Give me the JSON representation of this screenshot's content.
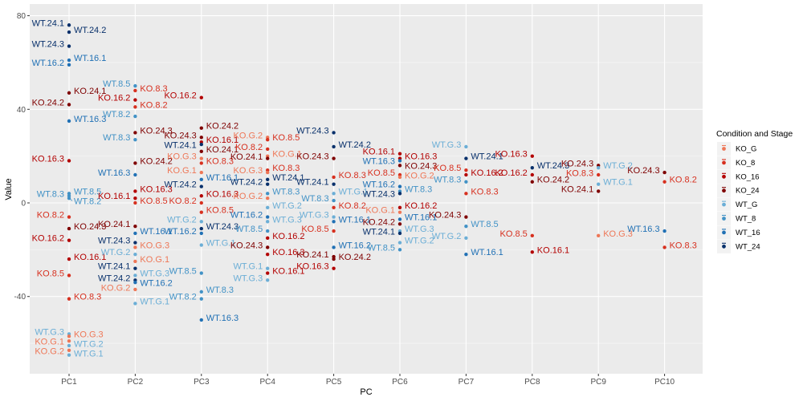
{
  "chart_data": {
    "type": "scatter",
    "xlabel": "PC",
    "ylabel": "Value",
    "categories": [
      "PC1",
      "PC2",
      "PC3",
      "PC4",
      "PC5",
      "PC6",
      "PC7",
      "PC8",
      "PC9",
      "PC10"
    ],
    "ylim": [
      -73,
      85
    ],
    "yticks": [
      -40,
      0,
      40,
      80
    ],
    "grid": true,
    "legend_title": "Condition and Stage",
    "legend_position": "right",
    "groups": [
      {
        "name": "KO_G",
        "color": "#EE7757"
      },
      {
        "name": "KO_8",
        "color": "#D7301F"
      },
      {
        "name": "KO_16",
        "color": "#B30000"
      },
      {
        "name": "KO_24",
        "color": "#7F0000"
      },
      {
        "name": "WT_G",
        "color": "#6BAED6"
      },
      {
        "name": "WT_8",
        "color": "#4292C6"
      },
      {
        "name": "WT_16",
        "color": "#2171B5"
      },
      {
        "name": "WT_24",
        "color": "#08306B"
      }
    ],
    "points": [
      {
        "label": "WT.24.1",
        "group": "WT_24",
        "pc": 1,
        "value": 76
      },
      {
        "label": "WT.24.2",
        "group": "WT_24",
        "pc": 1,
        "value": 73
      },
      {
        "label": "WT.24.3",
        "group": "WT_24",
        "pc": 1,
        "value": 67
      },
      {
        "label": "WT.16.1",
        "group": "WT_16",
        "pc": 1,
        "value": 61
      },
      {
        "label": "WT.16.2",
        "group": "WT_16",
        "pc": 1,
        "value": 59
      },
      {
        "label": "KO.24.1",
        "group": "KO_24",
        "pc": 1,
        "value": 47
      },
      {
        "label": "KO.24.2",
        "group": "KO_24",
        "pc": 1,
        "value": 42
      },
      {
        "label": "WT.16.3",
        "group": "WT_16",
        "pc": 1,
        "value": 35
      },
      {
        "label": "KO.16.3",
        "group": "KO_16",
        "pc": 1,
        "value": 18
      },
      {
        "label": "WT.8.5",
        "group": "WT_8",
        "pc": 1,
        "value": 4
      },
      {
        "label": "WT.8.3",
        "group": "WT_8",
        "pc": 1,
        "value": 3
      },
      {
        "label": "WT.8.2",
        "group": "WT_8",
        "pc": 1,
        "value": 2
      },
      {
        "label": "KO.8.2",
        "group": "KO_8",
        "pc": 1,
        "value": -6
      },
      {
        "label": "KO.24.3",
        "group": "KO_24",
        "pc": 1,
        "value": -11
      },
      {
        "label": "KO.16.2",
        "group": "KO_16",
        "pc": 1,
        "value": -16
      },
      {
        "label": "KO.16.1",
        "group": "KO_16",
        "pc": 1,
        "value": -24
      },
      {
        "label": "KO.8.5",
        "group": "KO_8",
        "pc": 1,
        "value": -31
      },
      {
        "label": "KO.8.3",
        "group": "KO_8",
        "pc": 1,
        "value": -41
      },
      {
        "label": "WT.G.3",
        "group": "WT_G",
        "pc": 1,
        "value": -56
      },
      {
        "label": "KO.G.3",
        "group": "KO_G",
        "pc": 1,
        "value": -57
      },
      {
        "label": "KO.G.1",
        "group": "KO_G",
        "pc": 1,
        "value": -59
      },
      {
        "label": "WT.G.2",
        "group": "WT_G",
        "pc": 1,
        "value": -61
      },
      {
        "label": "KO.G.2",
        "group": "KO_G",
        "pc": 1,
        "value": -63
      },
      {
        "label": "WT.G.1",
        "group": "WT_G",
        "pc": 1,
        "value": -65
      },
      {
        "label": "WT.8.5",
        "group": "WT_8",
        "pc": 2,
        "value": 50
      },
      {
        "label": "KO.8.3",
        "group": "KO_8",
        "pc": 2,
        "value": 48
      },
      {
        "label": "KO.16.2",
        "group": "KO_16",
        "pc": 2,
        "value": 44
      },
      {
        "label": "KO.8.2",
        "group": "KO_8",
        "pc": 2,
        "value": 41
      },
      {
        "label": "WT.8.2",
        "group": "WT_8",
        "pc": 2,
        "value": 37
      },
      {
        "label": "KO.24.3",
        "group": "KO_24",
        "pc": 2,
        "value": 30
      },
      {
        "label": "WT.8.3",
        "group": "WT_8",
        "pc": 2,
        "value": 27
      },
      {
        "label": "KO.24.2",
        "group": "KO_24",
        "pc": 2,
        "value": 17
      },
      {
        "label": "WT.16.3",
        "group": "WT_16",
        "pc": 2,
        "value": 12
      },
      {
        "label": "KO.16.3",
        "group": "KO_16",
        "pc": 2,
        "value": 5
      },
      {
        "label": "KO.16.1",
        "group": "KO_16",
        "pc": 2,
        "value": 2
      },
      {
        "label": "KO.8.5",
        "group": "KO_8",
        "pc": 2,
        "value": 0
      },
      {
        "label": "KO.24.1",
        "group": "KO_24",
        "pc": 2,
        "value": -10
      },
      {
        "label": "WT.16.1",
        "group": "WT_16",
        "pc": 2,
        "value": -13
      },
      {
        "label": "WT.24.3",
        "group": "WT_24",
        "pc": 2,
        "value": -17
      },
      {
        "label": "KO.G.3",
        "group": "KO_G",
        "pc": 2,
        "value": -19
      },
      {
        "label": "WT.G.2",
        "group": "WT_G",
        "pc": 2,
        "value": -22
      },
      {
        "label": "KO.G.1",
        "group": "KO_G",
        "pc": 2,
        "value": -25
      },
      {
        "label": "WT.24.1",
        "group": "WT_24",
        "pc": 2,
        "value": -28
      },
      {
        "label": "WT.G.3",
        "group": "WT_G",
        "pc": 2,
        "value": -31
      },
      {
        "label": "WT.24.2",
        "group": "WT_24",
        "pc": 2,
        "value": -33
      },
      {
        "label": "WT.16.2",
        "group": "WT_16",
        "pc": 2,
        "value": -34
      },
      {
        "label": "KO.G.2",
        "group": "KO_G",
        "pc": 2,
        "value": -37
      },
      {
        "label": "WT.G.1",
        "group": "WT_G",
        "pc": 2,
        "value": -43
      },
      {
        "label": "KO.16.2",
        "group": "KO_16",
        "pc": 3,
        "value": 45
      },
      {
        "label": "KO.24.2",
        "group": "KO_24",
        "pc": 3,
        "value": 32
      },
      {
        "label": "KO.24.3",
        "group": "KO_24",
        "pc": 3,
        "value": 28
      },
      {
        "label": "KO.16.1",
        "group": "KO_16",
        "pc": 3,
        "value": 26
      },
      {
        "label": "WT.24.1",
        "group": "WT_24",
        "pc": 3,
        "value": 25
      },
      {
        "label": "KO.24.1",
        "group": "KO_24",
        "pc": 3,
        "value": 22
      },
      {
        "label": "KO.G.3",
        "group": "KO_G",
        "pc": 3,
        "value": 19
      },
      {
        "label": "KO.8.3",
        "group": "KO_8",
        "pc": 3,
        "value": 17
      },
      {
        "label": "KO.G.1",
        "group": "KO_G",
        "pc": 3,
        "value": 13
      },
      {
        "label": "WT.16.1",
        "group": "WT_16",
        "pc": 3,
        "value": 10
      },
      {
        "label": "WT.24.2",
        "group": "WT_24",
        "pc": 3,
        "value": 7
      },
      {
        "label": "KO.16.3",
        "group": "KO_16",
        "pc": 3,
        "value": 3
      },
      {
        "label": "KO.8.2",
        "group": "KO_8",
        "pc": 3,
        "value": 0
      },
      {
        "label": "KO.8.5",
        "group": "KO_8",
        "pc": 3,
        "value": -4
      },
      {
        "label": "WT.G.2",
        "group": "WT_G",
        "pc": 3,
        "value": -8
      },
      {
        "label": "WT.24.3",
        "group": "WT_24",
        "pc": 3,
        "value": -11
      },
      {
        "label": "WT.16.2",
        "group": "WT_16",
        "pc": 3,
        "value": -13
      },
      {
        "label": "WT.G.1",
        "group": "WT_G",
        "pc": 3,
        "value": -18
      },
      {
        "label": "WT.8.5",
        "group": "WT_8",
        "pc": 3,
        "value": -30
      },
      {
        "label": "WT.8.3",
        "group": "WT_8",
        "pc": 3,
        "value": -38
      },
      {
        "label": "WT.8.2",
        "group": "WT_8",
        "pc": 3,
        "value": -41
      },
      {
        "label": "WT.16.3",
        "group": "WT_16",
        "pc": 3,
        "value": -50
      },
      {
        "label": "KO.G.2",
        "group": "KO_G",
        "pc": 4,
        "value": 28
      },
      {
        "label": "KO.8.5",
        "group": "KO_8",
        "pc": 4,
        "value": 27
      },
      {
        "label": "KO.8.2",
        "group": "KO_8",
        "pc": 4,
        "value": 23
      },
      {
        "label": "KO.G.1",
        "group": "KO_G",
        "pc": 4,
        "value": 20
      },
      {
        "label": "KO.24.1",
        "group": "KO_24",
        "pc": 4,
        "value": 19
      },
      {
        "label": "KO.8.3",
        "group": "KO_8",
        "pc": 4,
        "value": 14
      },
      {
        "label": "KO.G.3",
        "group": "KO_G",
        "pc": 4,
        "value": 13
      },
      {
        "label": "WT.24.1",
        "group": "WT_24",
        "pc": 4,
        "value": 10
      },
      {
        "label": "WT.24.2",
        "group": "WT_24",
        "pc": 4,
        "value": 8
      },
      {
        "label": "WT.8.3",
        "group": "WT_8",
        "pc": 4,
        "value": 4
      },
      {
        "label": "KO.G.2",
        "group": "KO_G",
        "pc": 4,
        "value": 2
      },
      {
        "label": "WT.G.2",
        "group": "WT_G",
        "pc": 4,
        "value": -2
      },
      {
        "label": "WT.16.2",
        "group": "WT_16",
        "pc": 4,
        "value": -6
      },
      {
        "label": "WT.G.3",
        "group": "WT_G",
        "pc": 4,
        "value": -8
      },
      {
        "label": "WT.8.5",
        "group": "WT_8",
        "pc": 4,
        "value": -12
      },
      {
        "label": "KO.16.2",
        "group": "KO_16",
        "pc": 4,
        "value": -15
      },
      {
        "label": "KO.24.3",
        "group": "KO_24",
        "pc": 4,
        "value": -19
      },
      {
        "label": "KO.16.3",
        "group": "KO_16",
        "pc": 4,
        "value": -22
      },
      {
        "label": "WT.G.1",
        "group": "WT_G",
        "pc": 4,
        "value": -28
      },
      {
        "label": "WT.G.3",
        "group": "WT_G",
        "pc": 4,
        "value": -33
      },
      {
        "label": "KO.16.1",
        "group": "KO_16",
        "pc": 4,
        "value": -30
      },
      {
        "label": "WT.24.3",
        "group": "WT_24",
        "pc": 5,
        "value": 30
      },
      {
        "label": "WT.24.2",
        "group": "WT_24",
        "pc": 5,
        "value": 24
      },
      {
        "label": "KO.24.3",
        "group": "KO_24",
        "pc": 5,
        "value": 19
      },
      {
        "label": "KO.8.3",
        "group": "KO_8",
        "pc": 5,
        "value": 11
      },
      {
        "label": "WT.24.1",
        "group": "WT_24",
        "pc": 5,
        "value": 8
      },
      {
        "label": "WT.G.1",
        "group": "WT_G",
        "pc": 5,
        "value": 4
      },
      {
        "label": "WT.8.3",
        "group": "WT_8",
        "pc": 5,
        "value": 1
      },
      {
        "label": "KO.8.2",
        "group": "KO_8",
        "pc": 5,
        "value": -2
      },
      {
        "label": "WT.G.3",
        "group": "WT_G",
        "pc": 5,
        "value": -6
      },
      {
        "label": "WT.16.1",
        "group": "WT_16",
        "pc": 5,
        "value": -8
      },
      {
        "label": "KO.8.5",
        "group": "KO_8",
        "pc": 5,
        "value": -12
      },
      {
        "label": "WT.16.2",
        "group": "WT_16",
        "pc": 5,
        "value": -19
      },
      {
        "label": "KO.24.1",
        "group": "KO_24",
        "pc": 5,
        "value": -23
      },
      {
        "label": "KO.24.2",
        "group": "KO_24",
        "pc": 5,
        "value": -24
      },
      {
        "label": "KO.16.3",
        "group": "KO_16",
        "pc": 5,
        "value": -28
      },
      {
        "label": "KO.16.1",
        "group": "KO_16",
        "pc": 6,
        "value": 21
      },
      {
        "label": "KO.16.3",
        "group": "KO_16",
        "pc": 6,
        "value": 19
      },
      {
        "label": "WT.16.3",
        "group": "WT_16",
        "pc": 6,
        "value": 18
      },
      {
        "label": "KO.24.3",
        "group": "KO_24",
        "pc": 6,
        "value": 16
      },
      {
        "label": "KO.8.5",
        "group": "KO_8",
        "pc": 6,
        "value": 12
      },
      {
        "label": "KO.G.2",
        "group": "KO_G",
        "pc": 6,
        "value": 11
      },
      {
        "label": "WT.16.2",
        "group": "WT_16",
        "pc": 6,
        "value": 7
      },
      {
        "label": "WT.8.3",
        "group": "WT_8",
        "pc": 6,
        "value": 5
      },
      {
        "label": "WT.24.3",
        "group": "WT_24",
        "pc": 6,
        "value": 4
      },
      {
        "label": "KO.16.2",
        "group": "KO_16",
        "pc": 6,
        "value": -2
      },
      {
        "label": "KO.G.1",
        "group": "KO_G",
        "pc": 6,
        "value": -4
      },
      {
        "label": "WT.16.1",
        "group": "WT_16",
        "pc": 6,
        "value": -7
      },
      {
        "label": "KO.24.2",
        "group": "KO_24",
        "pc": 6,
        "value": -9
      },
      {
        "label": "WT.G.3",
        "group": "WT_G",
        "pc": 6,
        "value": -12
      },
      {
        "label": "WT.24.1",
        "group": "WT_24",
        "pc": 6,
        "value": -13
      },
      {
        "label": "WT.G.2",
        "group": "WT_G",
        "pc": 6,
        "value": -17
      },
      {
        "label": "WT.8.5",
        "group": "WT_8",
        "pc": 6,
        "value": -20
      },
      {
        "label": "WT.G.3",
        "group": "WT_G",
        "pc": 7,
        "value": 24
      },
      {
        "label": "WT.24.1",
        "group": "WT_24",
        "pc": 7,
        "value": 19
      },
      {
        "label": "KO.8.5",
        "group": "KO_8",
        "pc": 7,
        "value": 14
      },
      {
        "label": "KO.16.2",
        "group": "KO_16",
        "pc": 7,
        "value": 12
      },
      {
        "label": "WT.8.3",
        "group": "WT_8",
        "pc": 7,
        "value": 9
      },
      {
        "label": "KO.8.3",
        "group": "KO_8",
        "pc": 7,
        "value": 4
      },
      {
        "label": "KO.24.3",
        "group": "KO_24",
        "pc": 7,
        "value": -6
      },
      {
        "label": "WT.8.5",
        "group": "WT_8",
        "pc": 7,
        "value": -10
      },
      {
        "label": "WT.G.2",
        "group": "WT_G",
        "pc": 7,
        "value": -15
      },
      {
        "label": "WT.16.1",
        "group": "WT_16",
        "pc": 7,
        "value": -22
      },
      {
        "label": "KO.16.3",
        "group": "KO_16",
        "pc": 8,
        "value": 20
      },
      {
        "label": "WT.24.3",
        "group": "WT_24",
        "pc": 8,
        "value": 15
      },
      {
        "label": "KO.16.2",
        "group": "KO_16",
        "pc": 8,
        "value": 12
      },
      {
        "label": "KO.24.2",
        "group": "KO_24",
        "pc": 8,
        "value": 9
      },
      {
        "label": "KO.8.5",
        "group": "KO_8",
        "pc": 8,
        "value": -14
      },
      {
        "label": "KO.16.1",
        "group": "KO_16",
        "pc": 8,
        "value": -21
      },
      {
        "label": "KO.24.3",
        "group": "KO_24",
        "pc": 9,
        "value": 16
      },
      {
        "label": "WT.G.2",
        "group": "WT_G",
        "pc": 9,
        "value": 15
      },
      {
        "label": "KO.8.3",
        "group": "KO_8",
        "pc": 9,
        "value": 12
      },
      {
        "label": "WT.G.1",
        "group": "WT_G",
        "pc": 9,
        "value": 8
      },
      {
        "label": "KO.24.1",
        "group": "KO_24",
        "pc": 9,
        "value": 5
      },
      {
        "label": "KO.G.3",
        "group": "KO_G",
        "pc": 9,
        "value": -14
      },
      {
        "label": "KO.24.3",
        "group": "KO_24",
        "pc": 10,
        "value": 13
      },
      {
        "label": "KO.8.2",
        "group": "KO_8",
        "pc": 10,
        "value": 9
      },
      {
        "label": "WT.16.3",
        "group": "WT_16",
        "pc": 10,
        "value": -12
      },
      {
        "label": "KO.8.3",
        "group": "KO_8",
        "pc": 10,
        "value": -19
      }
    ]
  }
}
